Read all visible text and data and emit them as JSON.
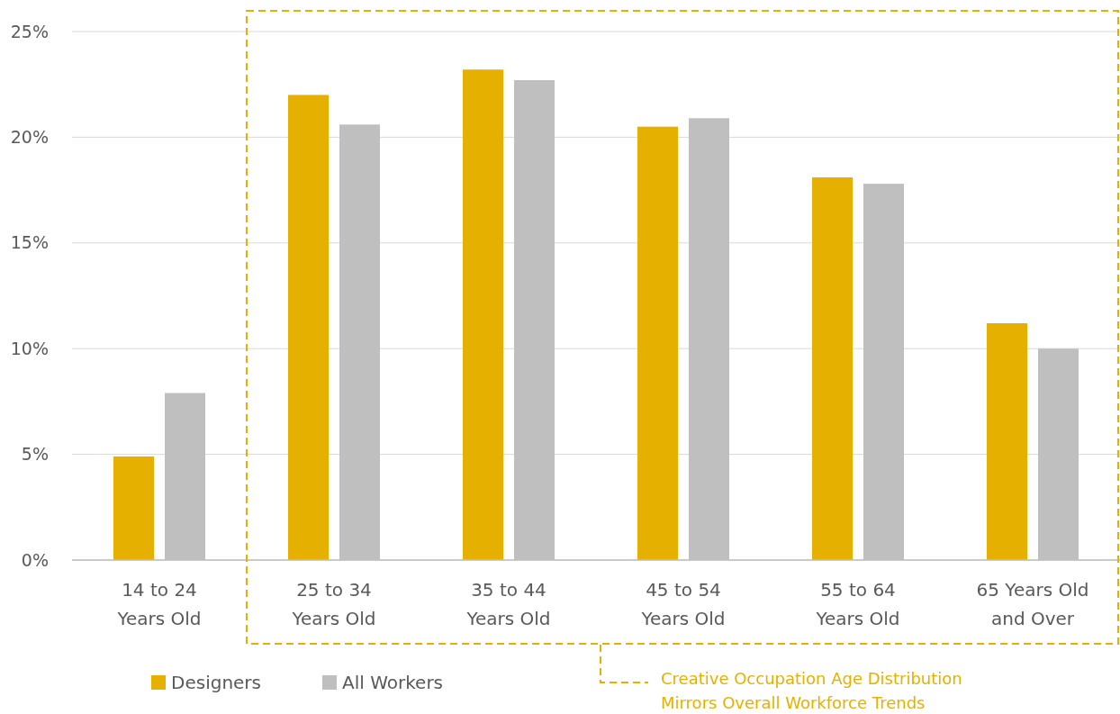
{
  "chart_data": {
    "type": "bar",
    "categories": [
      "14 to 24\nYears Old",
      "25 to 34\nYears Old",
      "35 to 44\nYears Old",
      "45 to 54\nYears Old",
      "55 to 64\nYears Old",
      "65 Years Old\nand Over"
    ],
    "series": [
      {
        "name": "Designers",
        "color": "#e6b000",
        "values": [
          4.9,
          22.0,
          23.2,
          20.5,
          18.1,
          11.2
        ]
      },
      {
        "name": "All Workers",
        "color": "#bfbfbf",
        "values": [
          7.9,
          20.6,
          22.7,
          20.9,
          17.8,
          10.0
        ]
      }
    ],
    "ylim": [
      0,
      25
    ],
    "yticks": [
      {
        "value": 0,
        "label": "0%"
      },
      {
        "value": 5,
        "label": "5%"
      },
      {
        "value": 10,
        "label": "10%"
      },
      {
        "value": 15,
        "label": "15%"
      },
      {
        "value": 20,
        "label": "20%"
      },
      {
        "value": 25,
        "label": "25%"
      }
    ],
    "grid": "y",
    "legend": "bottom left",
    "annotations": [
      "Creative Occupation Age Distribution\nMirrors Overall Workforce Trends"
    ]
  }
}
